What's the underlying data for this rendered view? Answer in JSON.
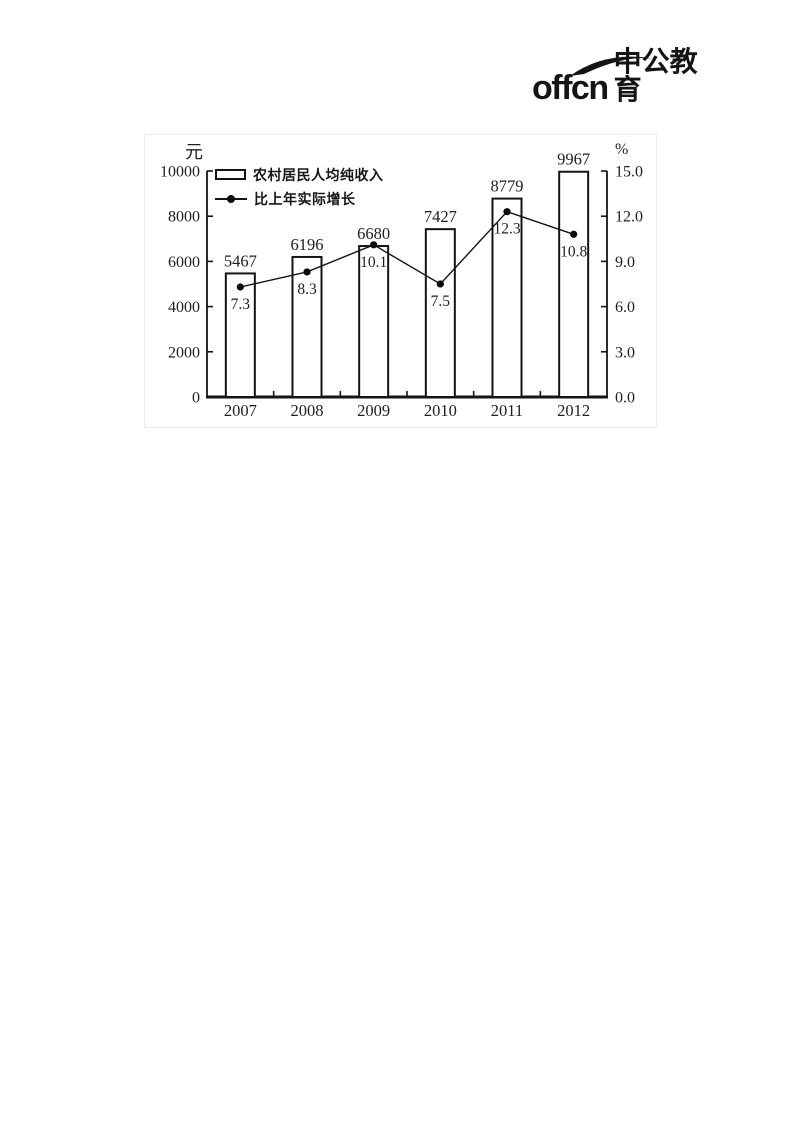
{
  "brand": {
    "wordmark": "offcn",
    "cjk": "中公教育",
    "color": "#141414"
  },
  "chart_data": {
    "type": "bar+line",
    "title": "",
    "categories": [
      "2007",
      "2008",
      "2009",
      "2010",
      "2011",
      "2012"
    ],
    "series": [
      {
        "name": "农村居民人均纯收入",
        "type": "bar",
        "axis": "left",
        "unit": "元",
        "values": [
          5467,
          6196,
          6680,
          7427,
          8779,
          9967
        ],
        "bar_fill": "#ffffff",
        "bar_stroke": "#141414"
      },
      {
        "name": "比上年实际增长",
        "type": "line",
        "axis": "right",
        "unit": "%",
        "values": [
          7.3,
          8.3,
          10.1,
          7.5,
          12.3,
          10.8
        ],
        "line_color": "#141414"
      }
    ],
    "left_axis": {
      "label": "元",
      "min": 0,
      "max": 10000,
      "ticks": [
        "0",
        "2000",
        "4000",
        "6000",
        "8000",
        "10000"
      ]
    },
    "right_axis": {
      "label": "%",
      "min": 0,
      "max": 15,
      "ticks": [
        "0.0",
        "3.0",
        "6.0",
        "9.0",
        "12.0",
        "15.0"
      ]
    },
    "legend_position": "top-left-inside",
    "grid": false,
    "ink_color": "#141414"
  }
}
